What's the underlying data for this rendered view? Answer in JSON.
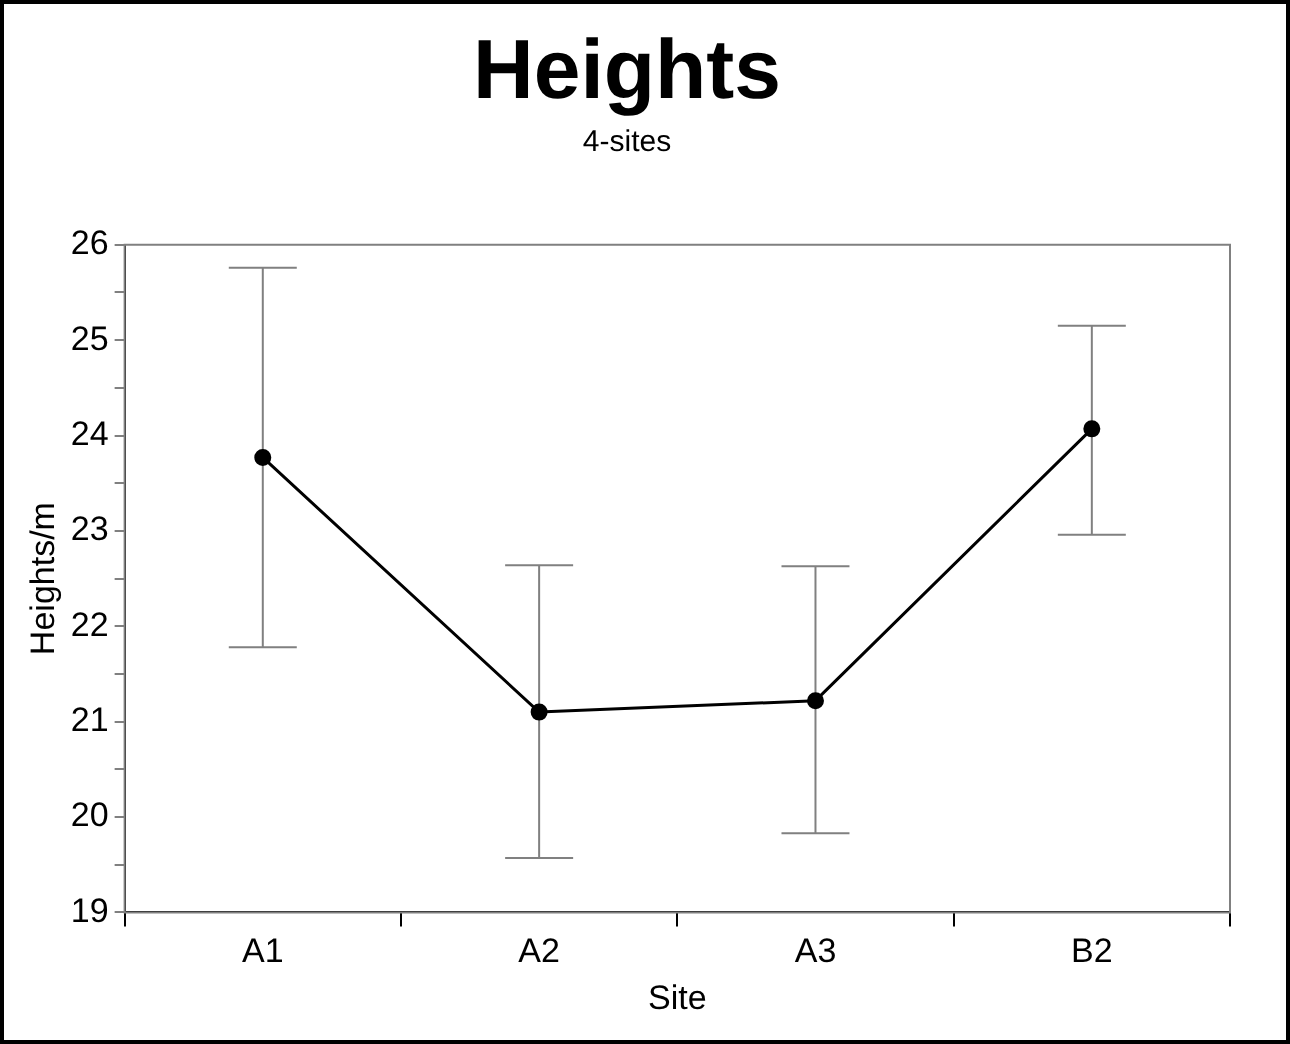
{
  "chart_data": {
    "type": "line",
    "title": "Heights",
    "subtitle": "4-sites",
    "xlabel": "Site",
    "ylabel": "Heights/m",
    "categories": [
      "A1",
      "A2",
      "A3",
      "B2"
    ],
    "series": [
      {
        "color": "#000000",
        "values": [
          23.77,
          21.1,
          21.22,
          24.07
        ],
        "errors": [
          [
            21.78,
            25.76
          ],
          [
            19.57,
            22.64
          ],
          [
            19.83,
            22.63
          ],
          [
            22.96,
            25.15
          ]
        ]
      }
    ],
    "ylim": [
      19,
      26
    ],
    "yticks": [
      19,
      {
        "value": 19.5,
        "label": null
      },
      20,
      {
        "value": 20.5,
        "label": null
      },
      21,
      {
        "value": 21.5,
        "label": null
      },
      22,
      {
        "value": 22.5,
        "label": null
      },
      23,
      {
        "value": 23.5,
        "label": null
      },
      24,
      {
        "value": 24.5,
        "label": null
      },
      25,
      {
        "value": 25.5,
        "label": null
      },
      26
    ],
    "grid": false,
    "legend": false,
    "marker": "circle",
    "line_style": "solid"
  }
}
